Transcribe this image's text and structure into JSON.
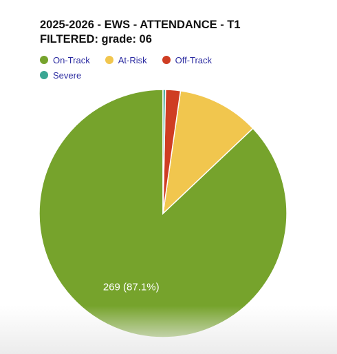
{
  "chart_data": {
    "type": "pie",
    "title": "2025-2026 - EWS - ATTENDANCE - T1",
    "subtitle": "FILTERED: grade: 06",
    "legend_position": "top-left",
    "slices": [
      {
        "label": "On-Track",
        "value": 269,
        "percent": 87.1,
        "color": "#76a32c",
        "data_label": "269 (87.1%)"
      },
      {
        "label": "At-Risk",
        "value": 33,
        "percent": 10.7,
        "color": "#f1c64e",
        "data_label": ""
      },
      {
        "label": "Off-Track",
        "value": 6,
        "percent": 1.9,
        "color": "#cf3d23",
        "data_label": ""
      },
      {
        "label": "Severe",
        "value": 1,
        "percent": 0.3,
        "color": "#3aa693",
        "data_label": ""
      }
    ]
  }
}
